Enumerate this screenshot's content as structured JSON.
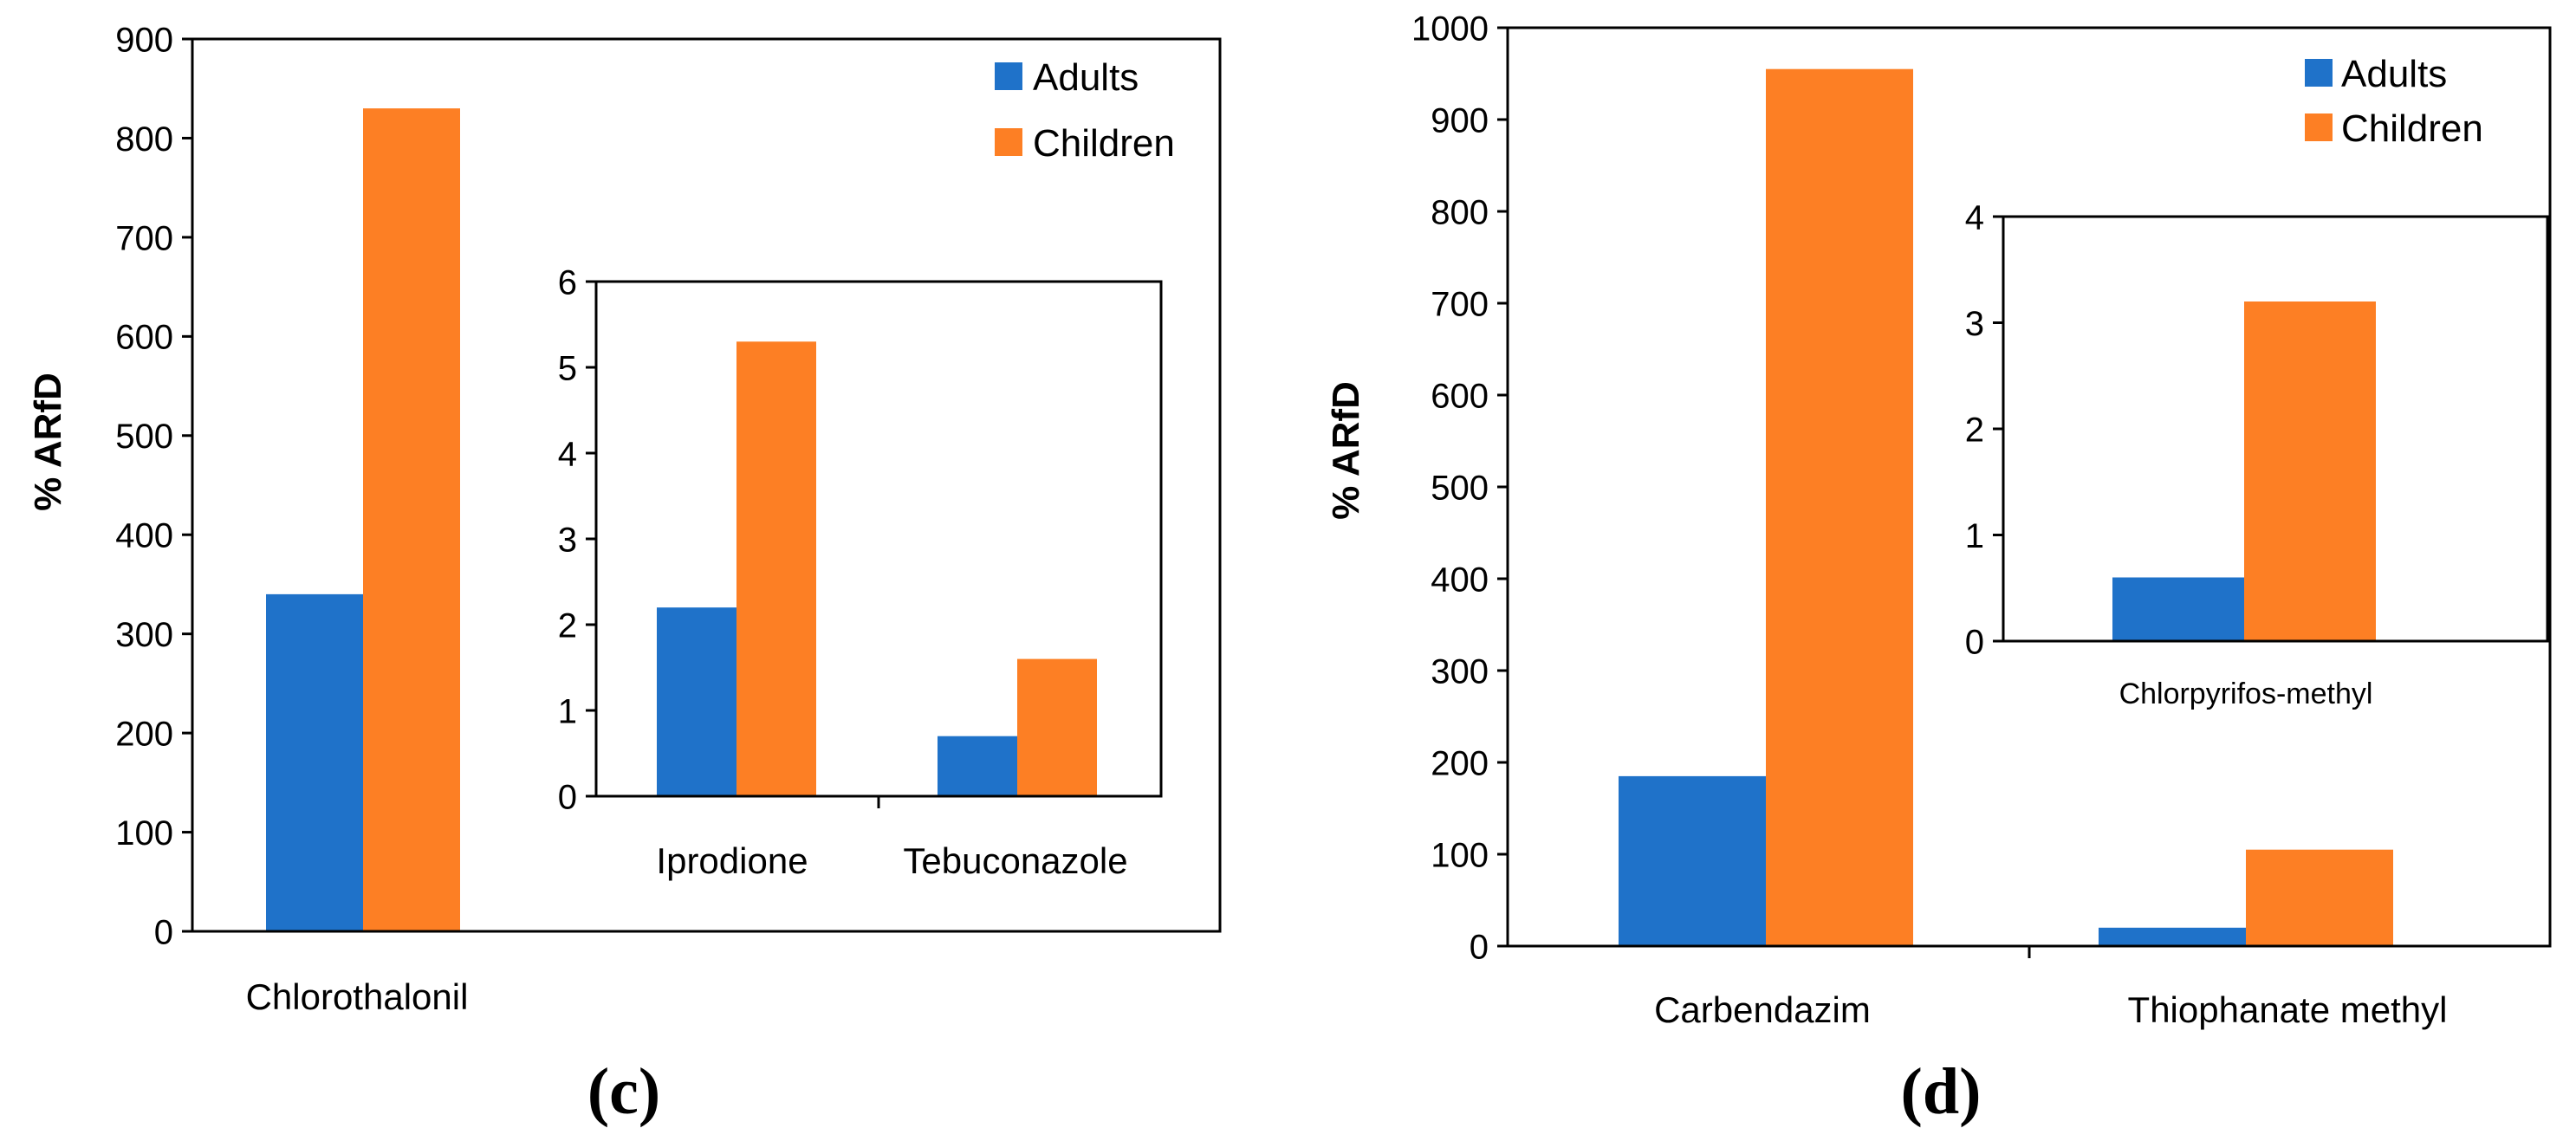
{
  "colors": {
    "adults": "#1f72c9",
    "children": "#fd7f24"
  },
  "chart_data": [
    {
      "id": "c",
      "type": "bar",
      "caption": "(c)",
      "ylabel": "% ARfD",
      "ylim": [
        0,
        900
      ],
      "yticks": [
        "0",
        "100",
        "200",
        "300",
        "400",
        "500",
        "600",
        "700",
        "800",
        "900"
      ],
      "categories": [
        "Chlorothalonil"
      ],
      "series": [
        {
          "name": "Adults",
          "values": [
            340
          ]
        },
        {
          "name": "Children",
          "values": [
            830
          ]
        }
      ],
      "legend": [
        "Adults",
        "Children"
      ],
      "inset": {
        "type": "bar",
        "ylim": [
          0,
          6
        ],
        "yticks": [
          "0",
          "1",
          "2",
          "3",
          "4",
          "5",
          "6"
        ],
        "categories": [
          "Iprodione",
          "Tebuconazole"
        ],
        "series": [
          {
            "name": "Adults",
            "values": [
              2.2,
              0.7
            ]
          },
          {
            "name": "Children",
            "values": [
              5.3,
              1.6
            ]
          }
        ]
      }
    },
    {
      "id": "d",
      "type": "bar",
      "caption": "(d)",
      "ylabel": "% ARfD",
      "ylim": [
        0,
        1000
      ],
      "yticks": [
        "0",
        "100",
        "200",
        "300",
        "400",
        "500",
        "600",
        "700",
        "800",
        "900",
        "1000"
      ],
      "categories": [
        "Carbendazim",
        "Thiophanate methyl"
      ],
      "series": [
        {
          "name": "Adults",
          "values": [
            185,
            20
          ]
        },
        {
          "name": "Children",
          "values": [
            955,
            105
          ]
        }
      ],
      "legend": [
        "Adults",
        "Children"
      ],
      "inset": {
        "type": "bar",
        "ylim": [
          0,
          4
        ],
        "yticks": [
          "0",
          "1",
          "2",
          "3",
          "4"
        ],
        "categories": [
          "Chlorpyrifos-methyl"
        ],
        "series": [
          {
            "name": "Adults",
            "values": [
              0.6
            ]
          },
          {
            "name": "Children",
            "values": [
              3.2
            ]
          }
        ]
      }
    }
  ]
}
